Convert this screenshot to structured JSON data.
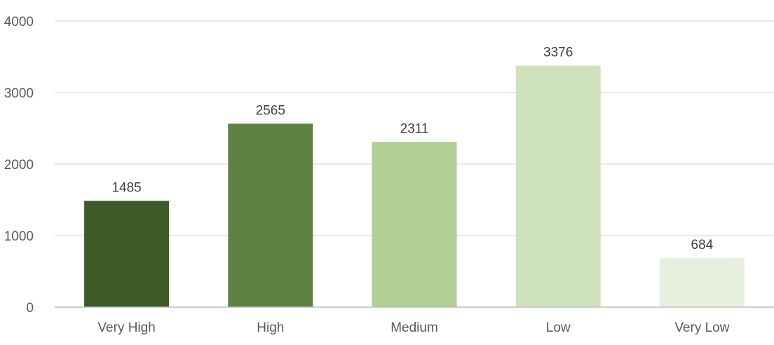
{
  "chart_data": {
    "type": "bar",
    "categories": [
      "Very High",
      "High",
      "Medium",
      "Low",
      "Very Low"
    ],
    "values": [
      1485,
      2565,
      2311,
      3376,
      684
    ],
    "data_labels": [
      "1485",
      "2565",
      "2311",
      "3376",
      "684"
    ],
    "bar_colors": [
      "#3d5a27",
      "#5e8340",
      "#b0cf94",
      "#cde2bb",
      "#e6f0dd"
    ],
    "ylim": [
      0,
      4000
    ],
    "yticks": [
      0,
      1000,
      2000,
      3000,
      4000
    ],
    "ytick_labels": [
      "0",
      "1000",
      "2000",
      "3000",
      "4000"
    ],
    "grid": true,
    "legend": "none"
  }
}
